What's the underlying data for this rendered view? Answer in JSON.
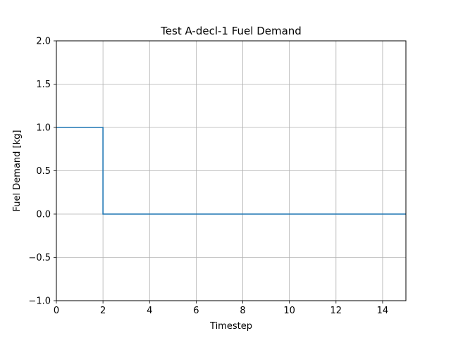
{
  "chart_data": {
    "type": "line",
    "title": "Test A-decl-1 Fuel Demand",
    "xlabel": "Timestep",
    "ylabel": "Fuel Demand [kg]",
    "xlim": [
      0,
      15
    ],
    "ylim": [
      -1.0,
      2.0
    ],
    "xticks": [
      0,
      2,
      4,
      6,
      8,
      10,
      12,
      14
    ],
    "xtick_labels": [
      "0",
      "2",
      "4",
      "6",
      "8",
      "10",
      "12",
      "14"
    ],
    "yticks": [
      -1.0,
      -0.5,
      0.0,
      0.5,
      1.0,
      1.5,
      2.0
    ],
    "ytick_labels": [
      "−1.0",
      "−0.5",
      "0.0",
      "0.5",
      "1.0",
      "1.5",
      "2.0"
    ],
    "grid": true,
    "step": "post",
    "series": [
      {
        "color": "#1f77b4",
        "x": [
          0,
          1,
          2,
          3,
          4,
          5,
          6,
          7,
          8,
          9,
          10,
          11,
          12,
          13,
          14,
          15
        ],
        "y": [
          1,
          1,
          0,
          0,
          0,
          0,
          0,
          0,
          0,
          0,
          0,
          0,
          0,
          0,
          0,
          0
        ]
      }
    ]
  }
}
